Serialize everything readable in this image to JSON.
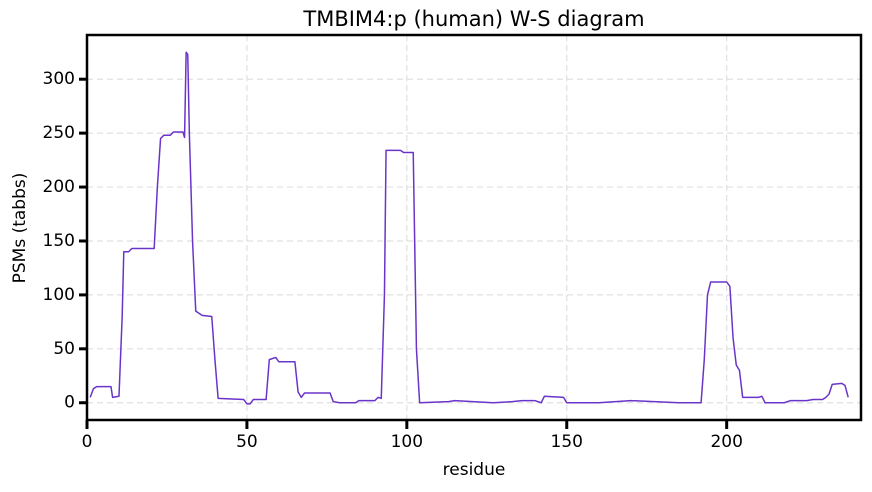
{
  "chart_data": {
    "type": "line",
    "title": "TMBIM4:p (human) W-S diagram",
    "x_label": "residue",
    "y_label": "PSMs (tabbs)",
    "color": "#6a34c9",
    "grid": true,
    "xlim": [
      0,
      242
    ],
    "ylim": [
      -16,
      341
    ],
    "xticks": [
      0,
      50,
      100,
      150,
      200
    ],
    "yticks": [
      0,
      50,
      100,
      150,
      200,
      250,
      300
    ],
    "x": [
      1,
      2,
      3,
      7.5,
      8,
      10,
      11,
      11.5,
      13,
      14,
      21,
      22,
      23,
      24,
      26,
      27,
      30,
      30.5,
      31,
      31.5,
      32,
      33,
      34,
      35,
      36,
      39,
      40,
      41,
      49,
      50,
      51,
      52,
      56,
      57,
      59,
      60,
      65,
      66,
      67,
      68,
      76,
      77,
      79,
      84,
      85,
      90,
      91,
      92,
      93,
      93.5,
      98,
      99,
      102,
      103,
      104,
      113,
      115,
      127,
      133,
      136,
      140,
      142,
      143,
      149,
      150,
      160,
      170,
      185,
      192,
      193,
      194,
      195,
      200,
      201,
      202,
      203,
      204,
      205,
      210,
      211,
      212,
      218,
      220,
      225,
      227,
      230,
      231,
      232,
      233,
      236,
      237,
      238
    ],
    "values": [
      5,
      13,
      15,
      15,
      5,
      6,
      80,
      140,
      140,
      143,
      143,
      200,
      245,
      248,
      248,
      251,
      251,
      246,
      325,
      323,
      250,
      150,
      85,
      83,
      81,
      80,
      40,
      4,
      3,
      -1,
      -1,
      3,
      3,
      40,
      42,
      38,
      38,
      10,
      5,
      9,
      9,
      1,
      0,
      0,
      2,
      2,
      5,
      4,
      100,
      234,
      234,
      232,
      232,
      50,
      0,
      1,
      2,
      0,
      1,
      2,
      2,
      0,
      6,
      5,
      0,
      0,
      2,
      0,
      0,
      40,
      100,
      112,
      112,
      108,
      60,
      35,
      30,
      5,
      5,
      6,
      0,
      0,
      2,
      2,
      3,
      3,
      5,
      8,
      17,
      18,
      16,
      5
    ]
  }
}
